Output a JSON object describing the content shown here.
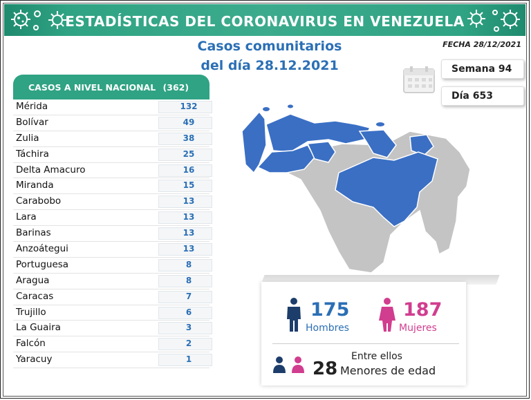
{
  "header": {
    "title": "ESTADÍSTICAS DEL CORONAVIRUS EN VENEZUELA"
  },
  "subtitle": {
    "line1": "Casos comunitarios",
    "line2": "del día 28.12.2021"
  },
  "fecha": "FECHA 28/12/2021",
  "semana": "Semana 94",
  "dia": "Día 653",
  "table": {
    "title": "CASOS A NIVEL NACIONAL",
    "total": "(362)",
    "rows": [
      {
        "name": "Mérida",
        "value": "132"
      },
      {
        "name": "Bolívar",
        "value": "49"
      },
      {
        "name": "Zulia",
        "value": "38"
      },
      {
        "name": "Táchira",
        "value": "25"
      },
      {
        "name": "Delta Amacuro",
        "value": "16"
      },
      {
        "name": "Miranda",
        "value": "15"
      },
      {
        "name": "Carabobo",
        "value": "13"
      },
      {
        "name": "Lara",
        "value": "13"
      },
      {
        "name": "Barinas",
        "value": "13"
      },
      {
        "name": "Anzoátegui",
        "value": "13"
      },
      {
        "name": "Portuguesa",
        "value": "8"
      },
      {
        "name": "Aragua",
        "value": "8"
      },
      {
        "name": "Caracas",
        "value": "7"
      },
      {
        "name": "Trujillo",
        "value": "6"
      },
      {
        "name": "La Guaira",
        "value": "3"
      },
      {
        "name": "Falcón",
        "value": "2"
      },
      {
        "name": "Yaracuy",
        "value": "1"
      }
    ]
  },
  "stats": {
    "men_count": "175",
    "men_label": "Hombres",
    "women_count": "187",
    "women_label": "Mujeres",
    "minors_caption": "Entre ellos",
    "minors_count": "28",
    "minors_label": "Menores de edad"
  },
  "colors": {
    "accent": "#2fa383",
    "blue": "#2b6fb5",
    "pink": "#d13d8f",
    "map_blue": "#3a6fc4",
    "map_gray": "#c4c4c4"
  }
}
